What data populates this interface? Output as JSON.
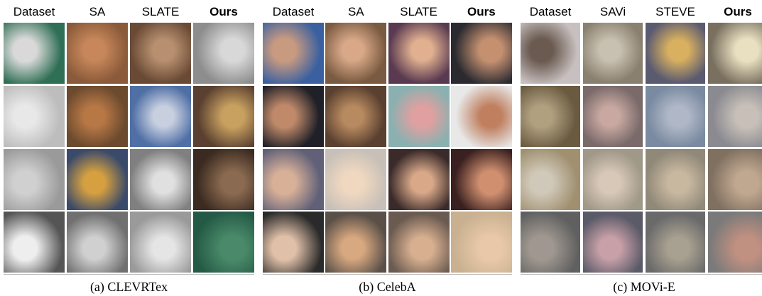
{
  "panels": [
    {
      "headers": [
        "Dataset",
        "SA",
        "SLATE",
        "Ours"
      ],
      "caption": "(a) CLEVRTex"
    },
    {
      "headers": [
        "Dataset",
        "SA",
        "SLATE",
        "Ours"
      ],
      "caption": "(b) CelebA"
    },
    {
      "headers": [
        "Dataset",
        "SAVi",
        "STEVE",
        "Ours"
      ],
      "caption": "(c) MOVi-E"
    }
  ]
}
